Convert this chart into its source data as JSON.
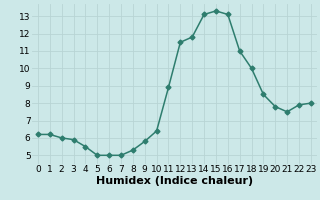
{
  "x": [
    0,
    1,
    2,
    3,
    4,
    5,
    6,
    7,
    8,
    9,
    10,
    11,
    12,
    13,
    14,
    15,
    16,
    17,
    18,
    19,
    20,
    21,
    22,
    23
  ],
  "y": [
    6.2,
    6.2,
    6.0,
    5.9,
    5.5,
    5.0,
    5.0,
    5.0,
    5.3,
    5.8,
    6.4,
    8.9,
    11.5,
    11.8,
    13.1,
    13.3,
    13.1,
    11.0,
    10.0,
    8.5,
    7.8,
    7.5,
    7.9,
    8.0
  ],
  "title": "",
  "xlabel": "Humidex (Indice chaleur)",
  "ylabel": "",
  "xlim": [
    -0.5,
    23.5
  ],
  "ylim": [
    4.5,
    13.7
  ],
  "yticks": [
    5,
    6,
    7,
    8,
    9,
    10,
    11,
    12,
    13
  ],
  "xticks": [
    0,
    1,
    2,
    3,
    4,
    5,
    6,
    7,
    8,
    9,
    10,
    11,
    12,
    13,
    14,
    15,
    16,
    17,
    18,
    19,
    20,
    21,
    22,
    23
  ],
  "line_color": "#2e7d6e",
  "bg_color": "#cce8e8",
  "grid_color": "#b8d4d4",
  "marker": "D",
  "marker_size": 2.5,
  "line_width": 1.1,
  "xlabel_fontsize": 8,
  "tick_fontsize": 6.5
}
